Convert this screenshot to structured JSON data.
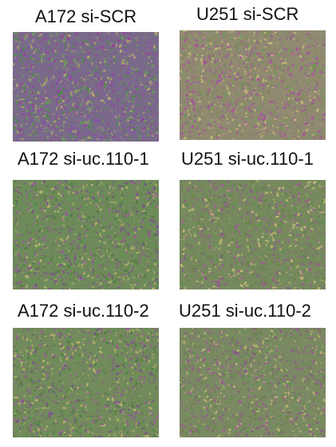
{
  "panels": [
    {
      "label": "A172 si-SCR",
      "base_color": "#7a6a8a",
      "speck_colors": [
        "#9a3f9a",
        "#4e8a4a",
        "#b8b06a",
        "#8a4fb0",
        "#6f9a5a"
      ]
    },
    {
      "label": "U251 si-SCR",
      "base_color": "#8f8a70",
      "speck_colors": [
        "#b04aa0",
        "#6f9a5a",
        "#d0c080",
        "#9a5a9a",
        "#7a8a55"
      ]
    },
    {
      "label": "A172 si-uc.110-1",
      "base_color": "#6f8a5a",
      "speck_colors": [
        "#5a9a4e",
        "#9a5a9a",
        "#c0b870",
        "#7a4f90",
        "#4e7a40"
      ]
    },
    {
      "label": "U251 si-uc.110-1",
      "base_color": "#768a5e",
      "speck_colors": [
        "#5e8f4e",
        "#a05a95",
        "#c8bc7a",
        "#8a5a8a",
        "#6a7f4a"
      ]
    },
    {
      "label": "A172 si-uc.110-2",
      "base_color": "#738a5c",
      "speck_colors": [
        "#5a9a4e",
        "#9a5a9a",
        "#c0b870",
        "#7a4f90",
        "#4e7a40"
      ]
    },
    {
      "label": "U251 si-uc.110-2",
      "base_color": "#7a8a62",
      "speck_colors": [
        "#5e8f4e",
        "#a05a95",
        "#c8bc7a",
        "#8a5a8a",
        "#6a7f4a"
      ]
    }
  ]
}
